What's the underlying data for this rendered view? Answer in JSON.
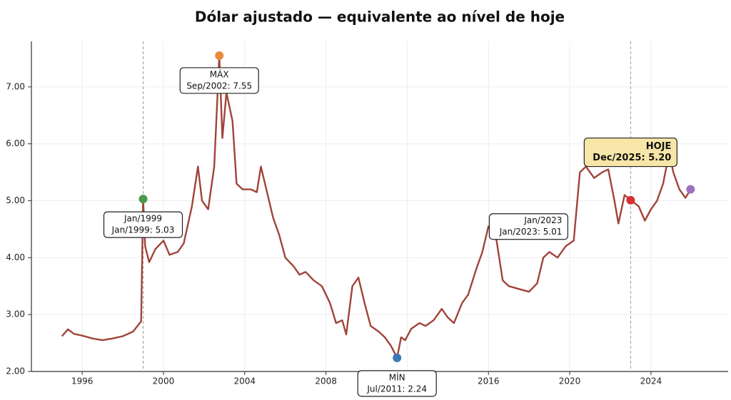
{
  "chart_data": {
    "type": "line",
    "title": "Dólar ajustado — equivalente ao nível de hoje",
    "color": "#a0443a",
    "grid": true,
    "xlim": [
      1993.5,
      2027.8
    ],
    "ylim": [
      2.0,
      7.8
    ],
    "xticks": [
      1996,
      2000,
      2004,
      2008,
      2012,
      2016,
      2020,
      2024
    ],
    "yticks": [
      {
        "value": 2,
        "label": "2.00"
      },
      {
        "value": 3,
        "label": "3.00"
      },
      {
        "value": 4,
        "label": "4.00"
      },
      {
        "value": 5,
        "label": "5.00"
      },
      {
        "value": 6,
        "label": "6.00"
      },
      {
        "value": 7,
        "label": "7.00"
      }
    ],
    "vlines": [
      1999,
      2023
    ],
    "x": [
      1995.0,
      1995.3,
      1995.6,
      1996.0,
      1996.5,
      1997.0,
      1997.5,
      1998.0,
      1998.5,
      1998.9,
      1999.0,
      1999.1,
      1999.3,
      1999.6,
      2000.0,
      2000.3,
      2000.7,
      2001.0,
      2001.4,
      2001.7,
      2001.9,
      2002.2,
      2002.5,
      2002.75,
      2002.9,
      2003.1,
      2003.4,
      2003.6,
      2003.9,
      2004.3,
      2004.6,
      2004.8,
      2005.0,
      2005.4,
      2005.7,
      2006.0,
      2006.4,
      2006.7,
      2007.0,
      2007.4,
      2007.8,
      2008.2,
      2008.5,
      2008.8,
      2009.0,
      2009.3,
      2009.6,
      2009.9,
      2010.2,
      2010.6,
      2010.9,
      2011.2,
      2011.5,
      2011.7,
      2011.9,
      2012.2,
      2012.6,
      2012.9,
      2013.3,
      2013.7,
      2014.0,
      2014.3,
      2014.7,
      2015.0,
      2015.4,
      2015.7,
      2016.0,
      2016.4,
      2016.7,
      2017.0,
      2017.5,
      2018.0,
      2018.4,
      2018.7,
      2019.0,
      2019.4,
      2019.8,
      2020.2,
      2020.5,
      2020.8,
      2021.2,
      2021.6,
      2021.9,
      2022.2,
      2022.4,
      2022.7,
      2023.0,
      2023.4,
      2023.7,
      2024.0,
      2024.3,
      2024.6,
      2024.9,
      2025.1,
      2025.4,
      2025.7,
      2025.95
    ],
    "values": [
      2.62,
      2.74,
      2.66,
      2.63,
      2.58,
      2.55,
      2.58,
      2.62,
      2.7,
      2.88,
      5.03,
      4.2,
      3.92,
      4.15,
      4.3,
      4.05,
      4.1,
      4.25,
      4.9,
      5.6,
      5.0,
      4.85,
      5.6,
      7.55,
      6.1,
      6.9,
      6.4,
      5.3,
      5.2,
      5.2,
      5.15,
      5.6,
      5.3,
      4.7,
      4.4,
      4.0,
      3.85,
      3.7,
      3.75,
      3.6,
      3.5,
      3.2,
      2.85,
      2.9,
      2.65,
      3.5,
      3.65,
      3.2,
      2.8,
      2.7,
      2.6,
      2.45,
      2.24,
      2.6,
      2.55,
      2.75,
      2.85,
      2.8,
      2.9,
      3.1,
      2.95,
      2.85,
      3.2,
      3.35,
      3.8,
      4.1,
      4.55,
      4.3,
      3.6,
      3.5,
      3.45,
      3.4,
      3.55,
      4.0,
      4.1,
      4.0,
      4.2,
      4.3,
      5.5,
      5.6,
      5.4,
      5.5,
      5.55,
      5.0,
      4.6,
      5.1,
      5.01,
      4.9,
      4.65,
      4.85,
      5.0,
      5.3,
      5.85,
      5.5,
      5.2,
      5.05,
      5.2
    ],
    "annotations": [
      {
        "x": 1999.0,
        "y": 5.03,
        "color": "#4a9a4a",
        "lines": [
          "Jan/1999",
          "Jan/1999: 5.03"
        ],
        "box_color": "#ffffff"
      },
      {
        "x": 2002.75,
        "y": 7.55,
        "color": "#e88a3a",
        "lines": [
          "MÁX",
          "Sep/2002: 7.55"
        ],
        "box_color": "#ffffff"
      },
      {
        "x": 2011.5,
        "y": 2.24,
        "color": "#3a78b8",
        "lines": [
          "MÍN",
          "Jul/2011: 2.24"
        ],
        "box_color": "#ffffff"
      },
      {
        "x": 2023.0,
        "y": 5.01,
        "color": "#d83030",
        "lines": [
          "Jan/2023",
          "Jan/2023: 5.01"
        ],
        "box_color": "#ffffff"
      },
      {
        "x": 2025.95,
        "y": 5.2,
        "color": "#9a70c0",
        "lines": [
          "HOJE",
          "Dec/2025: 5.20"
        ],
        "box_color": "#f8e6a8"
      }
    ]
  }
}
